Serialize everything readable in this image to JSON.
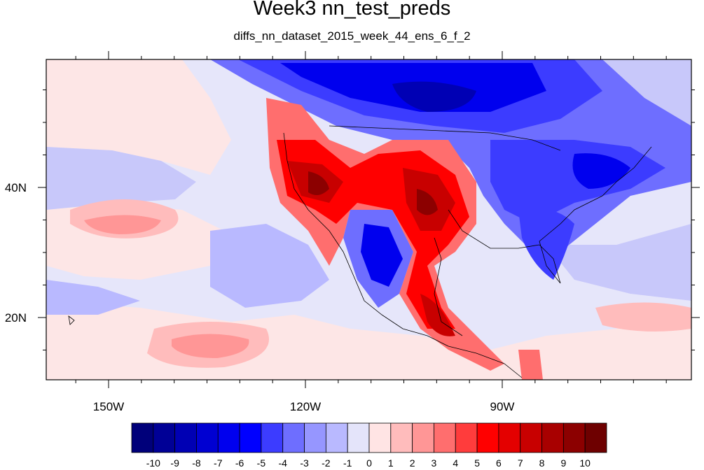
{
  "title": "Week3 nn_test_preds",
  "subtitle": "diffs_nn_dataset_2015_week_44_ens_6_f_2",
  "axes": {
    "x_ticks": [
      {
        "lon": -150,
        "label": "150W"
      },
      {
        "lon": -120,
        "label": "120W"
      },
      {
        "lon": -90,
        "label": "90W"
      }
    ],
    "y_ticks": [
      {
        "lat": 40,
        "label": "40N"
      },
      {
        "lat": 20,
        "label": "20N"
      }
    ]
  },
  "colorbar": {
    "levels": [
      "-10",
      "-9",
      "-8",
      "-7",
      "-6",
      "-5",
      "-4",
      "-3",
      "-2",
      "-1",
      "0",
      "1",
      "2",
      "3",
      "4",
      "5",
      "6",
      "7",
      "8",
      "9",
      "10"
    ],
    "colors": [
      "#00007a",
      "#000096",
      "#0000b4",
      "#0000d2",
      "#0000ee",
      "#0000ff",
      "#3c3cff",
      "#6e6eff",
      "#9696ff",
      "#b9b9ff",
      "#e4e4fa",
      "#ffe4e4",
      "#ffbcbc",
      "#ff9696",
      "#ff6e6e",
      "#ff3c3c",
      "#ff0000",
      "#e40000",
      "#c80000",
      "#a80000",
      "#8c0000",
      "#6e0000"
    ]
  }
}
